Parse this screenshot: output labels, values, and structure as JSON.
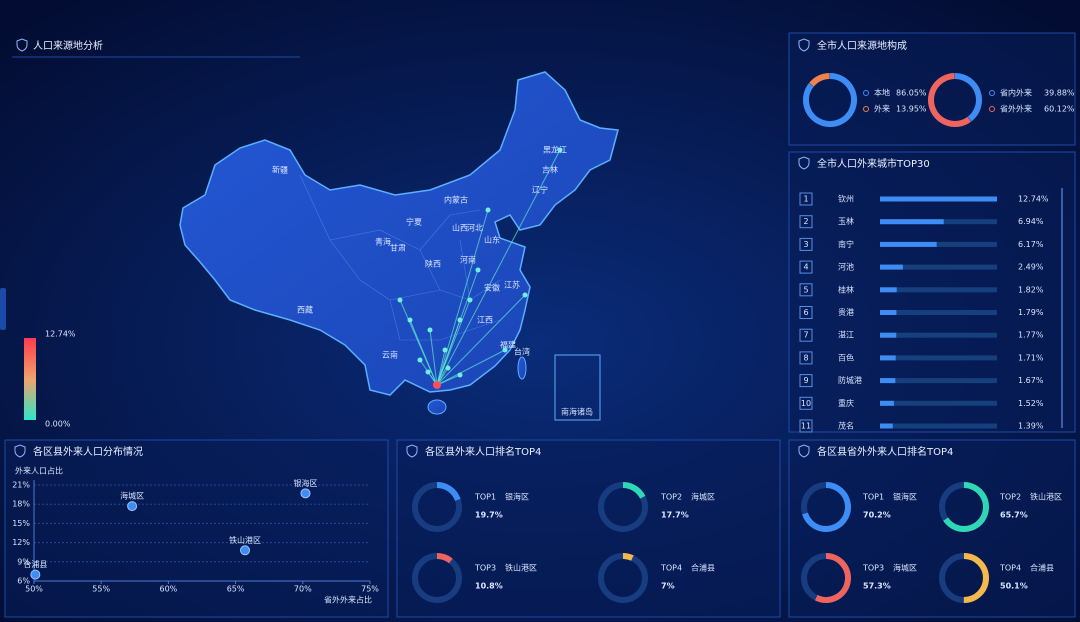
{
  "map_panel": {
    "title": "人口来源地分析",
    "legend": {
      "max": "12.74%",
      "min": "0.00%"
    },
    "regions": [
      "新疆",
      "西藏",
      "青海",
      "甘肃",
      "宁夏",
      "内蒙古",
      "黑龙江",
      "吉林",
      "辽宁",
      "河北",
      "山西",
      "山东",
      "河南",
      "陕西",
      "安徽",
      "江苏",
      "江西",
      "福建",
      "云南",
      "台湾"
    ],
    "inset": "南海诸岛"
  },
  "composition_panel": {
    "title": "全市人口来源地构成",
    "donuts": [
      {
        "names": [
          "本地",
          "外来"
        ],
        "values": [
          86.05,
          13.95
        ],
        "value_labels": [
          "86.05%",
          "13.95%"
        ],
        "colors": [
          "#3d8df5",
          "#f0824b"
        ]
      },
      {
        "names": [
          "省内外来",
          "省外外来"
        ],
        "values": [
          39.88,
          60.12
        ],
        "value_labels": [
          "39.88%",
          "60.12%"
        ],
        "colors": [
          "#3d8df5",
          "#f0645e"
        ]
      }
    ]
  },
  "top30_panel": {
    "title": "全市人口外来城市TOP30",
    "type": "bar",
    "xlim": [
      0,
      12.74
    ],
    "ranks": [
      1,
      2,
      3,
      4,
      5,
      6,
      7,
      8,
      9,
      10,
      11
    ],
    "categories": [
      "钦州",
      "玉林",
      "南宁",
      "河池",
      "桂林",
      "贵港",
      "湛江",
      "百色",
      "防城港",
      "重庆",
      "茂名"
    ],
    "values": [
      12.74,
      6.94,
      6.17,
      2.49,
      1.82,
      1.79,
      1.77,
      1.71,
      1.67,
      1.52,
      1.39
    ],
    "value_labels": [
      "12.74%",
      "6.94%",
      "6.17%",
      "2.49%",
      "1.82%",
      "1.79%",
      "1.77%",
      "1.71%",
      "1.67%",
      "1.52%",
      "1.39%"
    ],
    "color": "#3d8df5"
  },
  "scatter_panel": {
    "type": "scatter",
    "title": "各区县外来人口分布情况",
    "y_label": "外来人口占比",
    "x_label": "省外外来占比",
    "xlim": [
      50,
      75
    ],
    "ylim": [
      6,
      21
    ],
    "xticks": [
      {
        "value": 50,
        "label": "50%"
      },
      {
        "value": 55,
        "label": "55%"
      },
      {
        "value": 60,
        "label": "60%"
      },
      {
        "value": 65,
        "label": "65%"
      },
      {
        "value": 70,
        "label": "70%"
      },
      {
        "value": 75,
        "label": "75%"
      }
    ],
    "yticks": [
      {
        "value": 6,
        "label": "6%"
      },
      {
        "value": 9,
        "label": "9%"
      },
      {
        "value": 12,
        "label": "12%"
      },
      {
        "value": 15,
        "label": "15%"
      },
      {
        "value": 18,
        "label": "18%"
      },
      {
        "value": 21,
        "label": "21%"
      }
    ],
    "names": [
      "银海区",
      "海城区",
      "铁山港区",
      "合浦县"
    ],
    "x": [
      70.2,
      57.3,
      65.7,
      50.1
    ],
    "y": [
      19.7,
      17.7,
      10.8,
      7
    ],
    "color": "#3d8df5"
  },
  "district_top4": {
    "title": "各区县外来人口排名TOP4",
    "ranks": [
      "TOP1",
      "TOP2",
      "TOP3",
      "TOP4"
    ],
    "names": [
      "银海区",
      "海城区",
      "铁山港区",
      "合浦县"
    ],
    "values": [
      19.7,
      17.7,
      10.8,
      7
    ],
    "value_labels": [
      "19.7%",
      "17.7%",
      "10.8%",
      "7%"
    ],
    "colors": [
      "#3d8df5",
      "#2ed8b6",
      "#f0645e",
      "#f5b94b"
    ]
  },
  "province_top4": {
    "title": "各区县省外外来人口排名TOP4",
    "ranks": [
      "TOP1",
      "TOP2",
      "TOP3",
      "TOP4"
    ],
    "names": [
      "银海区",
      "铁山港区",
      "海城区",
      "合浦县"
    ],
    "values": [
      70.2,
      65.7,
      57.3,
      50.1
    ],
    "value_labels": [
      "70.2%",
      "65.7%",
      "57.3%",
      "50.1%"
    ],
    "colors": [
      "#3d8df5",
      "#2ed8b6",
      "#f0645e",
      "#f5b94b"
    ]
  }
}
